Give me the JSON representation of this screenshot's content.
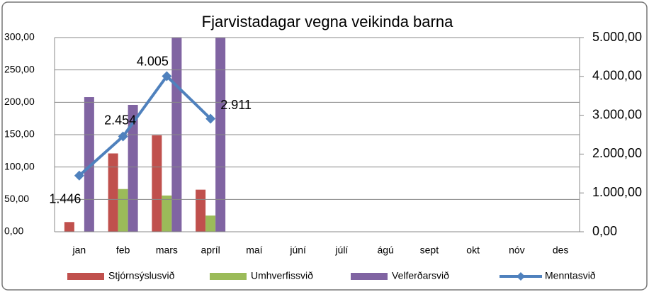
{
  "chart_data": {
    "type": "bar-line",
    "title": "Fjarvistadagar vegna veikinda barna",
    "categories": [
      "jan",
      "feb",
      "mars",
      "apríl",
      "maí",
      "júní",
      "júlí",
      "ágú",
      "sept",
      "okt",
      "nóv",
      "des"
    ],
    "series": [
      {
        "name": "Stjórnsýslusvið",
        "color": "#c0504d",
        "values": [
          15,
          121,
          149,
          65,
          null,
          null,
          null,
          null,
          null,
          null,
          null,
          null
        ]
      },
      {
        "name": "Umhverfissvið",
        "color": "#9bbb59",
        "values": [
          null,
          66,
          56,
          25,
          null,
          null,
          null,
          null,
          null,
          null,
          null,
          null
        ]
      },
      {
        "name": "Velferðarsvið",
        "color": "#8064a2",
        "values": [
          208,
          196,
          320,
          320,
          null,
          null,
          null,
          null,
          null,
          null,
          null,
          null
        ]
      },
      {
        "name": "Menntasvið",
        "color": "#4f81bd",
        "axis": "y2",
        "values": [
          1446,
          2454,
          4005,
          2911,
          null,
          null,
          null,
          null,
          null,
          null,
          null,
          null
        ],
        "value_labels": [
          "1.446",
          "2.454",
          "4.005",
          "2.911",
          null,
          null,
          null,
          null,
          null,
          null,
          null,
          null
        ]
      }
    ],
    "ylim": [
      0,
      300
    ],
    "yticks": [
      {
        "value": 0,
        "label": "0,00"
      },
      {
        "value": 50,
        "label": "50,00"
      },
      {
        "value": 100,
        "label": "100,00"
      },
      {
        "value": 150,
        "label": "150,00"
      },
      {
        "value": 200,
        "label": "200,00"
      },
      {
        "value": 250,
        "label": "250,00"
      },
      {
        "value": 300,
        "label": "300,00"
      }
    ],
    "y2lim": [
      0,
      5000
    ],
    "y2ticks": [
      {
        "value": 0,
        "label": "0,00"
      },
      {
        "value": 1000,
        "label": "1.000,00"
      },
      {
        "value": 2000,
        "label": "2.000,00"
      },
      {
        "value": 3000,
        "label": "3.000,00"
      },
      {
        "value": 4000,
        "label": "4.000,00"
      },
      {
        "value": 5000,
        "label": "5.000,00"
      }
    ],
    "grid": true,
    "legend": "bottom"
  }
}
